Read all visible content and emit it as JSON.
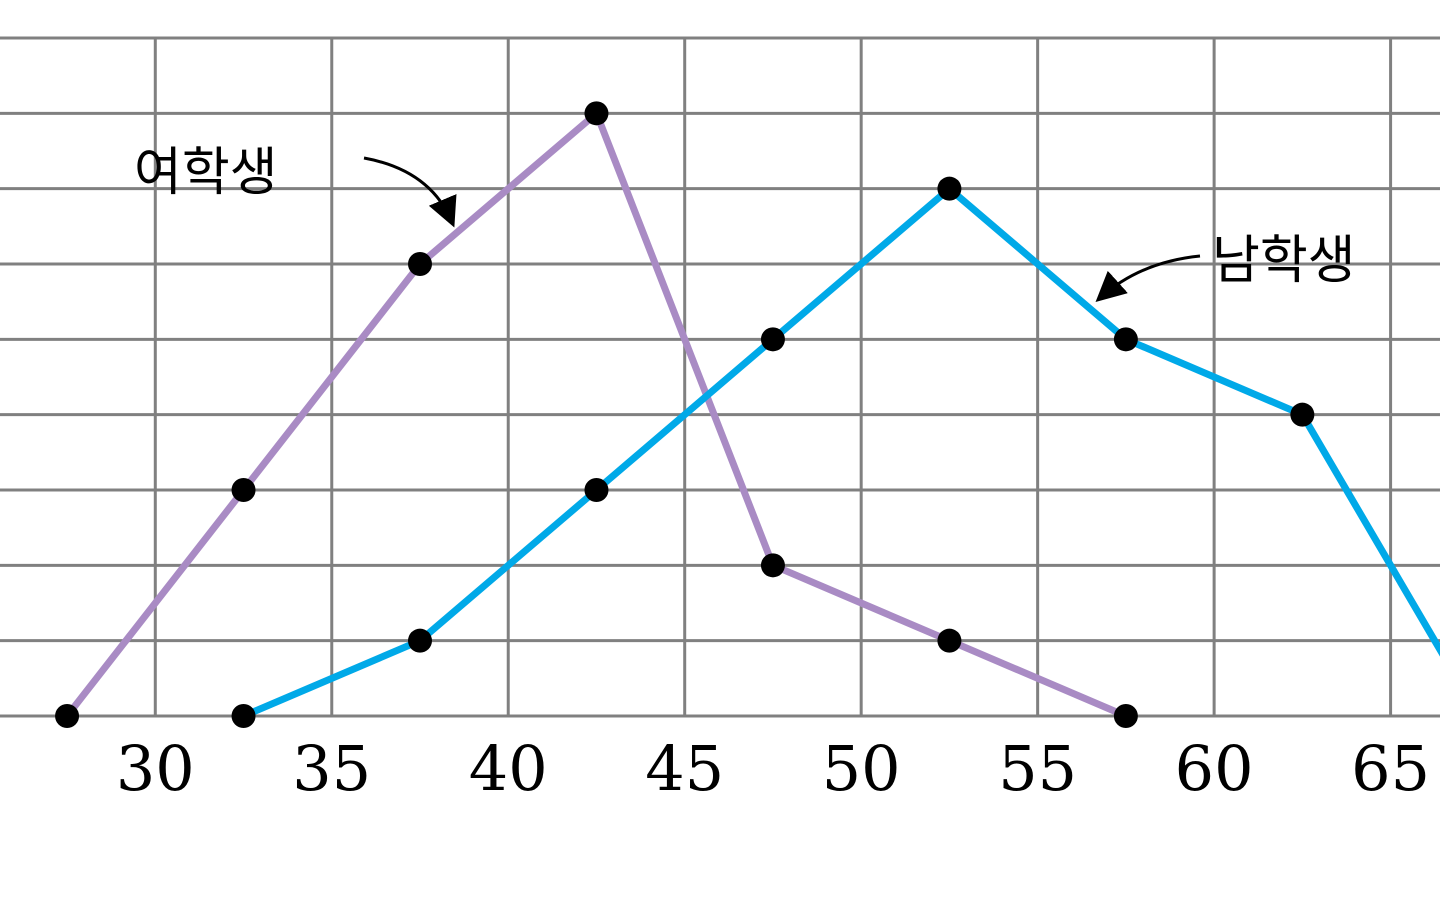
{
  "chart_data": {
    "type": "line",
    "xlabel": "",
    "ylabel": "",
    "x_ticks": [
      30,
      35,
      40,
      45,
      50,
      55,
      60,
      65
    ],
    "xlim": [
      25.6,
      66.4
    ],
    "ylim": [
      0,
      9
    ],
    "grid": true,
    "series": [
      {
        "name": "여학생",
        "color": "#a98bc4",
        "x": [
          27.5,
          32.5,
          37.5,
          42.5,
          47.5,
          52.5,
          57.5
        ],
        "y": [
          0,
          3,
          6,
          8,
          2,
          1,
          0
        ]
      },
      {
        "name": "남학생",
        "color": "#00a9e8",
        "x": [
          32.5,
          37.5,
          42.5,
          47.5,
          52.5,
          57.5,
          62.5,
          67.5
        ],
        "y": [
          0,
          1,
          3,
          5,
          7,
          5,
          4,
          0
        ]
      }
    ],
    "marker_color": "#000000",
    "grid_color": "#808080"
  }
}
